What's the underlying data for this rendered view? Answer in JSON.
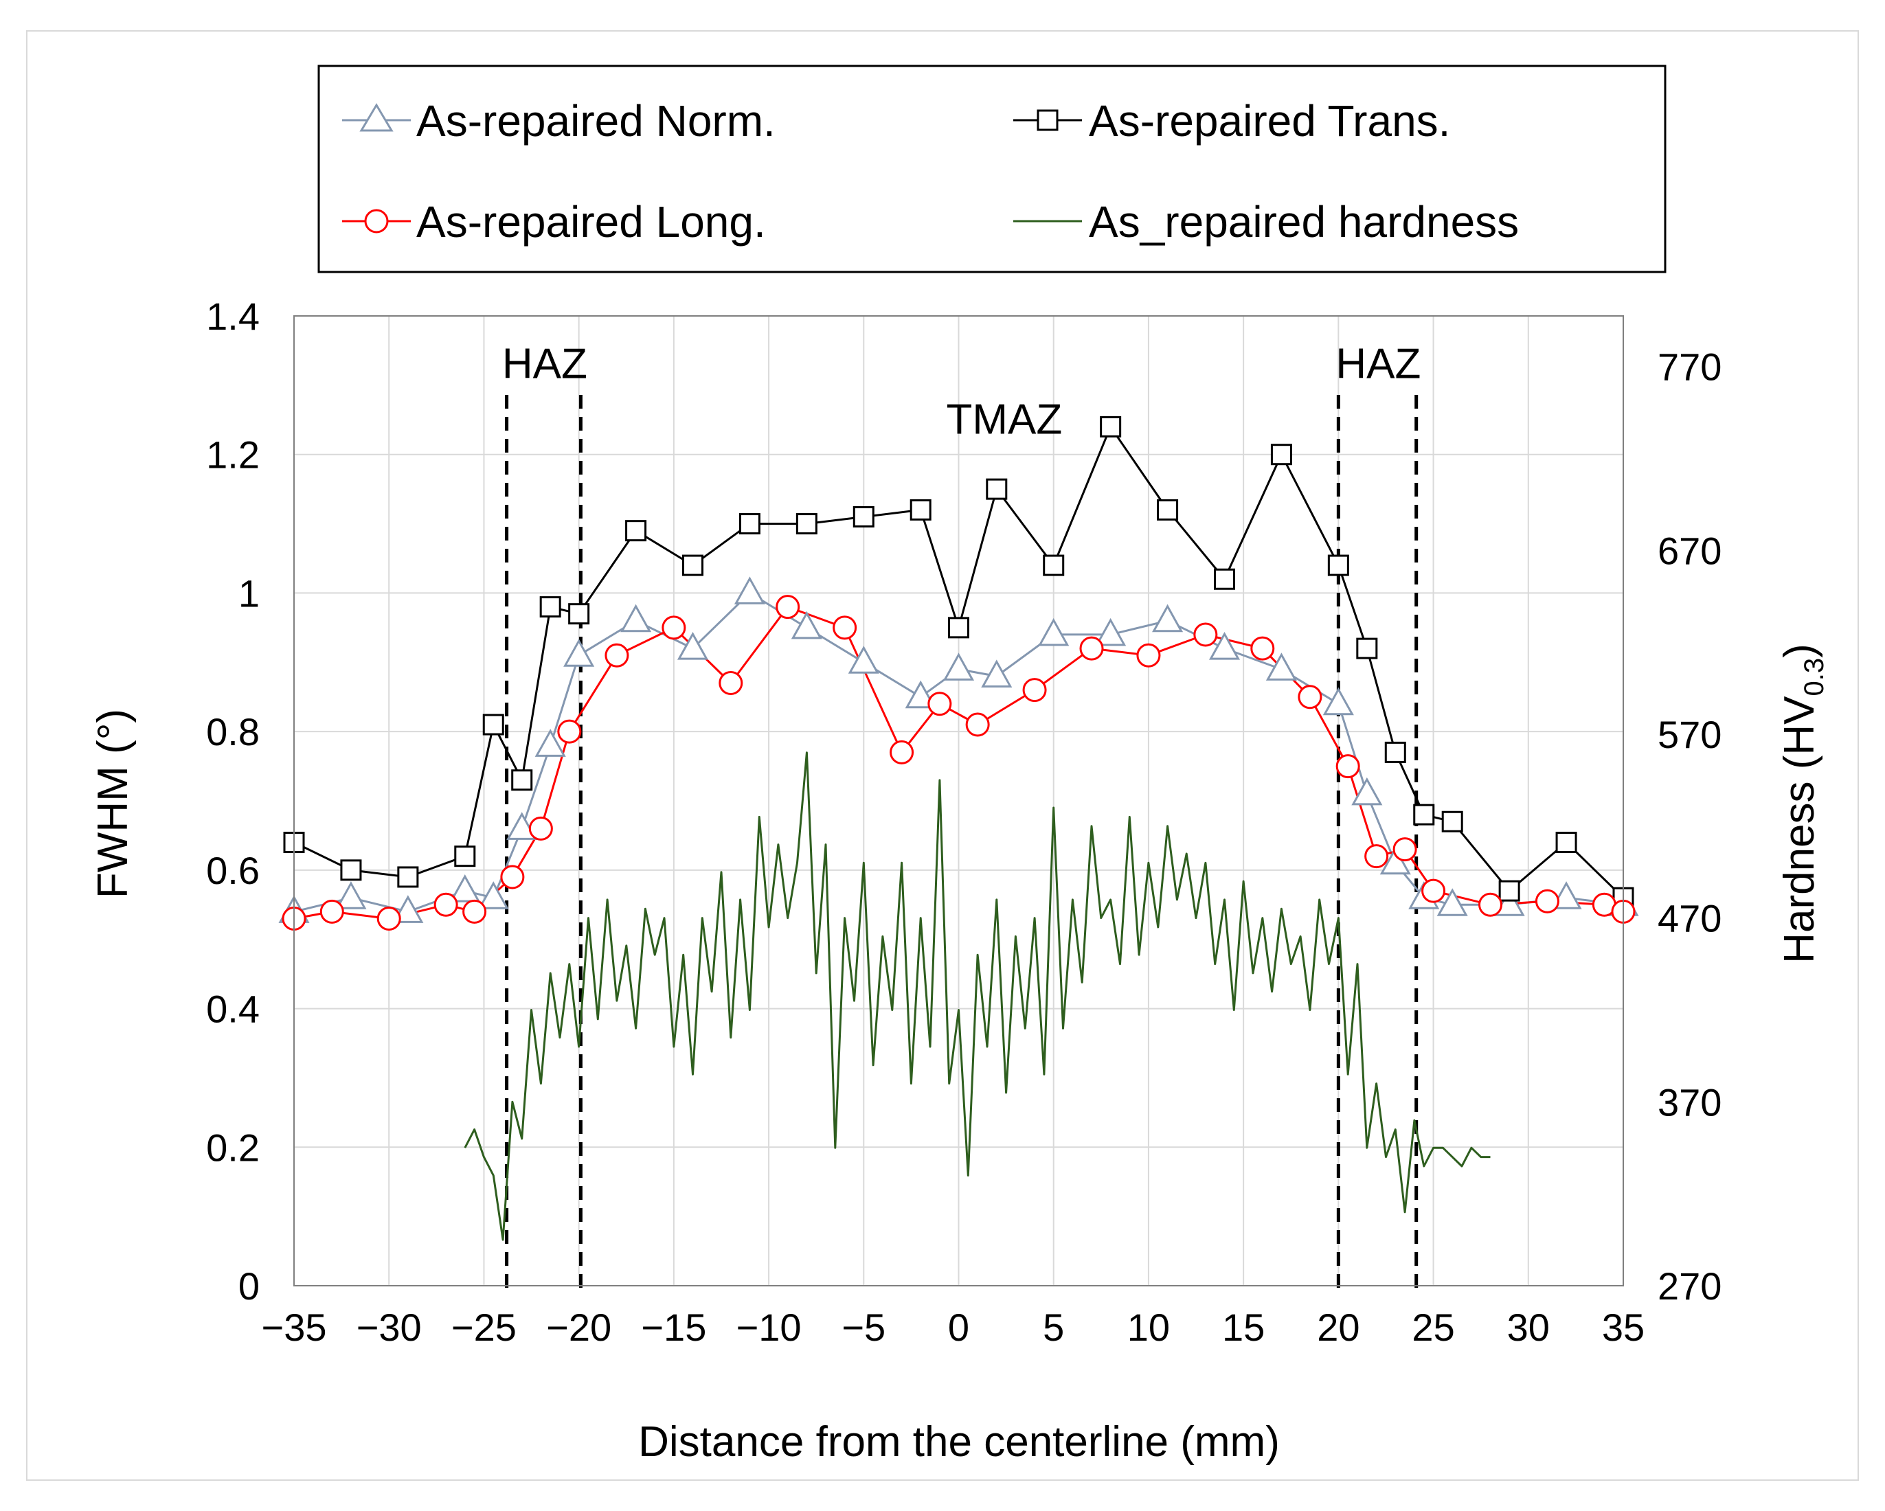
{
  "chart_data": {
    "type": "line",
    "title": "",
    "xlabel": "Distance from the centerline (mm)",
    "ylabel_left": "FWHM (°)",
    "ylabel_right": "Hardness (HV0.3)",
    "ylabel_right_parts": {
      "main": "Hardness (HV",
      "sub": "0.3",
      "close": ")"
    },
    "xlim": [
      -35,
      35
    ],
    "ylim_left": [
      0,
      1.4
    ],
    "ylim_right": [
      270,
      797.5
    ],
    "x_ticks": [
      -35,
      -30,
      -25,
      -20,
      -15,
      -10,
      -5,
      0,
      5,
      10,
      15,
      20,
      25,
      30,
      35
    ],
    "x_tick_labels": [
      "−35",
      "−30",
      "−25",
      "−20",
      "−15",
      "−10",
      "−5",
      "0",
      "5",
      "10",
      "15",
      "20",
      "25",
      "30",
      "35"
    ],
    "y_left_ticks": [
      0,
      0.2,
      0.4,
      0.6,
      0.8,
      1,
      1.2,
      1.4
    ],
    "y_left_tick_labels": [
      "0",
      "0.2",
      "0.4",
      "0.6",
      "0.8",
      "1",
      "1.2",
      "1.4"
    ],
    "y_right_ticks": [
      270,
      370,
      470,
      570,
      670,
      770
    ],
    "y_right_tick_labels": [
      "270",
      "370",
      "470",
      "570",
      "670",
      "770"
    ],
    "grid": true,
    "zone_lines": [
      -23.8,
      -19.9,
      20.0,
      24.1
    ],
    "annotations": [
      {
        "id": "haz-left",
        "text": "HAZ",
        "x": -21.8,
        "y": 1.33
      },
      {
        "id": "tmaz",
        "text": "TMAZ",
        "x": 2.4,
        "y": 1.25
      },
      {
        "id": "haz-right",
        "text": "HAZ",
        "x": 22.1,
        "y": 1.33
      }
    ],
    "legend": [
      {
        "name": "As-repaired Norm.",
        "color": "#8497b0",
        "marker": "triangle"
      },
      {
        "name": "As-repaired Trans.",
        "color": "#000000",
        "marker": "square"
      },
      {
        "name": "As-repaired Long.",
        "color": "#ff0000",
        "marker": "circle"
      },
      {
        "name": "As_repaired hardness",
        "color": "#2e5e1e",
        "marker": "none"
      }
    ],
    "series": [
      {
        "name": "As-repaired Norm.",
        "axis": "left",
        "color": "#8497b0",
        "marker": "triangle",
        "x": [
          -35,
          -32,
          -29,
          -26,
          -24.5,
          -23,
          -21.5,
          -20,
          -17,
          -14,
          -11,
          -8,
          -5,
          -2,
          0,
          2,
          5,
          8,
          11,
          14,
          17,
          20,
          21.5,
          23,
          24.5,
          26,
          29,
          32,
          35
        ],
        "y": [
          0.54,
          0.56,
          0.54,
          0.57,
          0.56,
          0.66,
          0.78,
          0.91,
          0.96,
          0.92,
          1.0,
          0.95,
          0.9,
          0.85,
          0.89,
          0.88,
          0.94,
          0.94,
          0.96,
          0.92,
          0.89,
          0.84,
          0.71,
          0.61,
          0.56,
          0.55,
          0.55,
          0.56,
          0.55
        ]
      },
      {
        "name": "As-repaired Trans.",
        "axis": "left",
        "color": "#000000",
        "marker": "square",
        "x": [
          -35,
          -32,
          -29,
          -26,
          -24.5,
          -23,
          -21.5,
          -20,
          -17,
          -14,
          -11,
          -8,
          -5,
          -2,
          0,
          2,
          5,
          8,
          11,
          14,
          17,
          20,
          21.5,
          23,
          24.5,
          26,
          29,
          32,
          35
        ],
        "y": [
          0.64,
          0.6,
          0.59,
          0.62,
          0.81,
          0.73,
          0.98,
          0.97,
          1.09,
          1.04,
          1.1,
          1.1,
          1.11,
          1.12,
          0.95,
          1.15,
          1.04,
          1.24,
          1.12,
          1.02,
          1.2,
          1.04,
          0.92,
          0.77,
          0.68,
          0.67,
          0.57,
          0.64,
          0.56
        ]
      },
      {
        "name": "As-repaired Long.",
        "axis": "left",
        "color": "#ff0000",
        "marker": "circle",
        "x": [
          -35,
          -33,
          -30,
          -27,
          -25.5,
          -23.5,
          -22,
          -20.5,
          -18,
          -15,
          -12,
          -9,
          -6,
          -3,
          -1,
          1,
          4,
          7,
          10,
          13,
          16,
          18.5,
          20.5,
          22,
          23.5,
          25,
          28,
          31,
          34,
          35
        ],
        "y": [
          0.53,
          0.54,
          0.53,
          0.55,
          0.54,
          0.59,
          0.66,
          0.8,
          0.91,
          0.95,
          0.87,
          0.98,
          0.95,
          0.77,
          0.84,
          0.81,
          0.86,
          0.92,
          0.91,
          0.94,
          0.92,
          0.85,
          0.75,
          0.62,
          0.63,
          0.57,
          0.55,
          0.555,
          0.55,
          0.54
        ]
      },
      {
        "name": "As_repaired hardness",
        "axis": "right",
        "color": "#2e5e1e",
        "marker": "none",
        "x": [
          -26,
          -25.5,
          -25,
          -24.5,
          -24,
          -23.5,
          -23,
          -22.5,
          -22,
          -21.5,
          -21,
          -20.5,
          -20,
          -19.5,
          -19,
          -18.5,
          -18,
          -17.5,
          -17,
          -16.5,
          -16,
          -15.5,
          -15,
          -14.5,
          -14,
          -13.5,
          -13,
          -12.5,
          -12,
          -11.5,
          -11,
          -10.5,
          -10,
          -9.5,
          -9,
          -8.5,
          -8,
          -7.5,
          -7,
          -6.5,
          -6,
          -5.5,
          -5,
          -4.5,
          -4,
          -3.5,
          -3,
          -2.5,
          -2,
          -1.5,
          -1,
          -0.5,
          0,
          0.5,
          1,
          1.5,
          2,
          2.5,
          3,
          3.5,
          4,
          4.5,
          5,
          5.5,
          6,
          6.5,
          7,
          7.5,
          8,
          8.5,
          9,
          9.5,
          10,
          10.5,
          11,
          11.5,
          12,
          12.5,
          13,
          13.5,
          14,
          14.5,
          15,
          15.5,
          16,
          16.5,
          17,
          17.5,
          18,
          18.5,
          19,
          19.5,
          20,
          20.5,
          21,
          21.5,
          22,
          22.5,
          23,
          23.5,
          24,
          24.5,
          25,
          25.5,
          26,
          26.5,
          27,
          27.5,
          28
        ],
        "y": [
          345,
          355,
          340,
          330,
          295,
          370,
          350,
          420,
          380,
          440,
          405,
          445,
          400,
          470,
          415,
          480,
          425,
          455,
          410,
          475,
          450,
          470,
          400,
          450,
          385,
          470,
          430,
          495,
          405,
          480,
          420,
          525,
          465,
          510,
          470,
          500,
          560,
          440,
          510,
          345,
          470,
          425,
          500,
          390,
          460,
          420,
          500,
          380,
          470,
          400,
          545,
          380,
          420,
          330,
          450,
          400,
          480,
          375,
          460,
          410,
          470,
          385,
          530,
          410,
          480,
          435,
          520,
          470,
          480,
          445,
          525,
          450,
          500,
          465,
          520,
          480,
          505,
          470,
          500,
          445,
          480,
          420,
          490,
          440,
          470,
          430,
          475,
          445,
          460,
          420,
          480,
          445,
          470,
          385,
          445,
          345,
          380,
          340,
          355,
          310,
          360,
          335,
          345,
          345,
          340,
          335,
          345,
          340,
          340
        ]
      }
    ]
  }
}
